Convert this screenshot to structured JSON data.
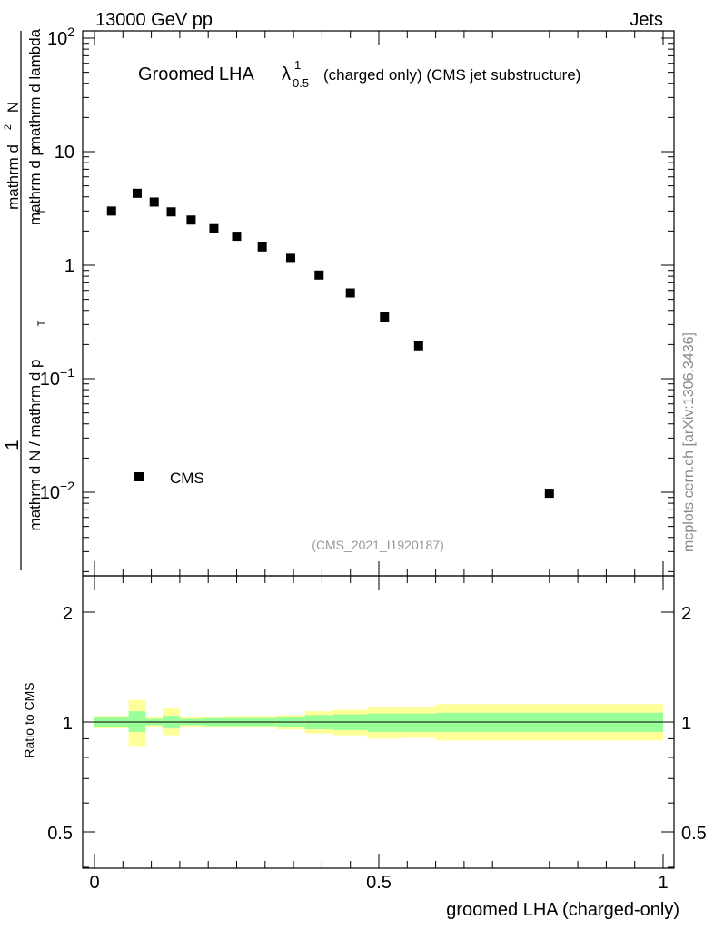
{
  "header": {
    "energy": "13000 GeV pp",
    "category": "Jets"
  },
  "plot_title": {
    "main": "Groomed LHA",
    "lambda": "λ",
    "sup": "1",
    "sub": "0.5",
    "suffix": "(charged only) (CMS jet substructure)"
  },
  "ylabel": {
    "numerator_lines": [
      "1",
      "mathrm d N / mathrm d p",
      "T"
    ],
    "line1": "1",
    "line2_main": "mathrm d N / mathrm d p",
    "line2_sub": "T",
    "line2_rest": "mathrm d",
    "line2_sup": "2",
    "line2_tail": "N",
    "line3_main": "mathrm d p",
    "line3_sub": "T",
    "line3_tail": "mathrm d lambda"
  },
  "watermark": "mcplots.cern.ch [arXiv:1306.3436]",
  "analysis_id": "(CMS_2021_I1920187)",
  "legend": {
    "label": "CMS"
  },
  "ratio": {
    "ylabel": "Ratio to CMS"
  },
  "xlabel": "groomed LHA (charged-only)",
  "axes": {
    "main_y_ticks": [
      {
        "value": 0.01,
        "base": "10",
        "exp": "−2"
      },
      {
        "value": 0.1,
        "base": "10",
        "exp": "−1"
      },
      {
        "value": 1,
        "base": "1",
        "exp": ""
      },
      {
        "value": 10,
        "base": "10",
        "exp": ""
      },
      {
        "value": 100,
        "base": "10",
        "exp": "2"
      }
    ],
    "ratio_y_ticks": [
      "0.5",
      "1",
      "2"
    ],
    "x_ticks": [
      "0",
      "0.5",
      "1"
    ]
  },
  "chart_data": {
    "type": "scatter",
    "title": "Groomed LHA λ^1_0.5 (charged only) (CMS jet substructure)",
    "xlabel": "groomed LHA (charged-only)",
    "ylabel": "1/N dN/dpT d²N/(dpT dλ)",
    "xlim": [
      -0.02,
      1.02
    ],
    "ylim": [
      0.0022,
      120
    ],
    "yscale": "log",
    "series": [
      {
        "name": "CMS",
        "x": [
          0.03,
          0.075,
          0.105,
          0.135,
          0.17,
          0.21,
          0.25,
          0.295,
          0.345,
          0.395,
          0.45,
          0.51,
          0.57,
          0.8
        ],
        "y": [
          3.0,
          4.3,
          3.6,
          2.95,
          2.5,
          2.1,
          1.8,
          1.45,
          1.15,
          0.82,
          0.57,
          0.35,
          0.195,
          0.0098
        ]
      }
    ],
    "ratio_panel": {
      "ylabel": "Ratio to CMS",
      "ylim": [
        0.4,
        2.3
      ],
      "yscale": "log",
      "bins": [
        {
          "x0": 0.0,
          "x1": 0.06,
          "stat": [
            0.97,
            1.03
          ],
          "total": [
            0.96,
            1.04
          ]
        },
        {
          "x0": 0.06,
          "x1": 0.09,
          "stat": [
            0.94,
            1.07
          ],
          "total": [
            0.86,
            1.15
          ]
        },
        {
          "x0": 0.09,
          "x1": 0.12,
          "stat": [
            0.98,
            1.02
          ],
          "total": [
            0.97,
            1.03
          ]
        },
        {
          "x0": 0.12,
          "x1": 0.15,
          "stat": [
            0.96,
            1.04
          ],
          "total": [
            0.92,
            1.09
          ]
        },
        {
          "x0": 0.15,
          "x1": 0.19,
          "stat": [
            0.98,
            1.02
          ],
          "total": [
            0.97,
            1.03
          ]
        },
        {
          "x0": 0.19,
          "x1": 0.23,
          "stat": [
            0.975,
            1.025
          ],
          "total": [
            0.965,
            1.035
          ]
        },
        {
          "x0": 0.23,
          "x1": 0.27,
          "stat": [
            0.975,
            1.025
          ],
          "total": [
            0.965,
            1.04
          ]
        },
        {
          "x0": 0.27,
          "x1": 0.32,
          "stat": [
            0.975,
            1.025
          ],
          "total": [
            0.965,
            1.04
          ]
        },
        {
          "x0": 0.32,
          "x1": 0.37,
          "stat": [
            0.97,
            1.03
          ],
          "total": [
            0.955,
            1.045
          ]
        },
        {
          "x0": 0.37,
          "x1": 0.42,
          "stat": [
            0.955,
            1.045
          ],
          "total": [
            0.93,
            1.07
          ]
        },
        {
          "x0": 0.42,
          "x1": 0.48,
          "stat": [
            0.95,
            1.05
          ],
          "total": [
            0.92,
            1.08
          ]
        },
        {
          "x0": 0.48,
          "x1": 0.54,
          "stat": [
            0.94,
            1.055
          ],
          "total": [
            0.9,
            1.1
          ]
        },
        {
          "x0": 0.54,
          "x1": 0.6,
          "stat": [
            0.94,
            1.055
          ],
          "total": [
            0.905,
            1.1
          ]
        },
        {
          "x0": 0.6,
          "x1": 1.0,
          "stat": [
            0.94,
            1.06
          ],
          "total": [
            0.89,
            1.12
          ]
        }
      ]
    },
    "colors": {
      "stat_band": "#99ff99",
      "total_band": "#ffff99",
      "marker": "#000000"
    }
  }
}
